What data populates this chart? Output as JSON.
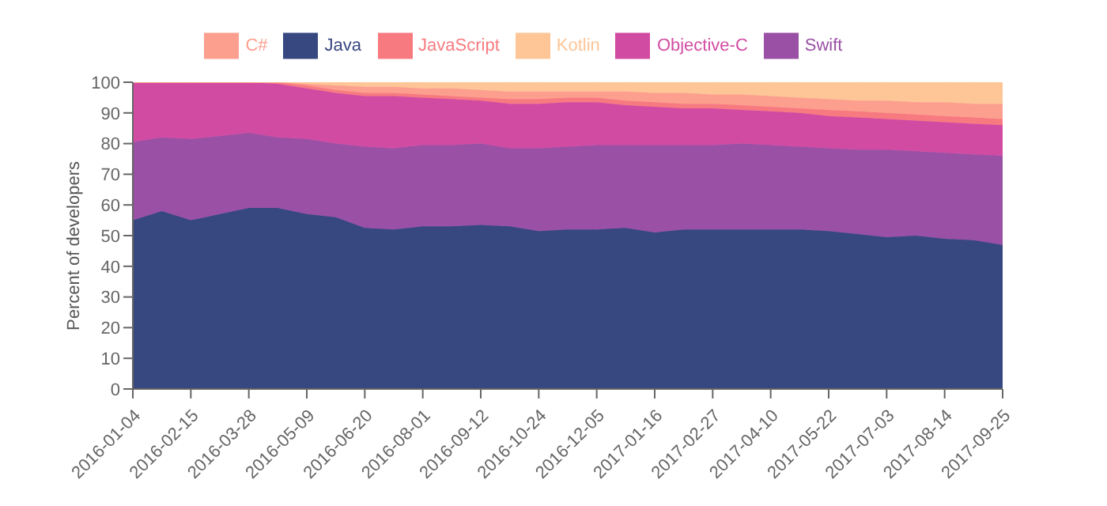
{
  "chart_data": {
    "type": "area",
    "stacked": true,
    "ylabel": "Percent of developers",
    "legend": "top",
    "marker": "none",
    "x": [
      "2016-01-04",
      "2016-01-25",
      "2016-02-15",
      "2016-03-07",
      "2016-03-28",
      "2016-04-18",
      "2016-05-09",
      "2016-05-30",
      "2016-06-20",
      "2016-07-11",
      "2016-08-01",
      "2016-08-22",
      "2016-09-12",
      "2016-10-03",
      "2016-10-24",
      "2016-11-14",
      "2016-12-05",
      "2016-12-26",
      "2017-01-16",
      "2017-02-06",
      "2017-02-27",
      "2017-03-20",
      "2017-04-10",
      "2017-05-01",
      "2017-05-22",
      "2017-06-12",
      "2017-07-03",
      "2017-07-24",
      "2017-08-14",
      "2017-09-04",
      "2017-09-25"
    ],
    "xlim": [
      "2016-01-04",
      "2017-09-25"
    ],
    "xticks": [
      "2016-01-04",
      "2016-02-15",
      "2016-03-28",
      "2016-05-09",
      "2016-06-20",
      "2016-08-01",
      "2016-09-12",
      "2016-10-24",
      "2016-12-05",
      "2017-01-16",
      "2017-02-27",
      "2017-04-10",
      "2017-05-22",
      "2017-07-03",
      "2017-08-14",
      "2017-09-25"
    ],
    "ylim": [
      0,
      100
    ],
    "yticks": [
      0,
      10,
      20,
      30,
      40,
      50,
      60,
      70,
      80,
      90,
      100
    ],
    "series": [
      {
        "name": "Java",
        "color": "#374780",
        "values": [
          55,
          58,
          55,
          57,
          59,
          59,
          57,
          56,
          52.5,
          52,
          53,
          53,
          53.5,
          53,
          51.5,
          52,
          52,
          52.5,
          51,
          52,
          52,
          52,
          52,
          52,
          51.5,
          50.5,
          49.5,
          50,
          49,
          48.5,
          47
        ]
      },
      {
        "name": "Swift",
        "color": "#9a50a5",
        "values": [
          25.5,
          24,
          26.5,
          25.5,
          24.5,
          23,
          24.5,
          24,
          26.5,
          26.5,
          26.5,
          26.5,
          26.5,
          25.5,
          27,
          27,
          27.5,
          27,
          28.5,
          27.5,
          27.5,
          28,
          27.5,
          27,
          27,
          27.5,
          28.5,
          27.5,
          28,
          28,
          29
        ]
      },
      {
        "name": "Objective-C",
        "color": "#d24ba2",
        "values": [
          19.5,
          18,
          18.5,
          17.5,
          16.5,
          17.5,
          16.5,
          16.5,
          16.5,
          17,
          15.5,
          15,
          14,
          14.5,
          14.5,
          14.5,
          14,
          13,
          12.5,
          12,
          12,
          11,
          11,
          11,
          10.5,
          10.5,
          10,
          10,
          10,
          10,
          10
        ]
      },
      {
        "name": "JavaScript",
        "color": "#f77a80",
        "values": [
          0,
          0,
          0,
          0,
          0,
          0.5,
          1,
          1,
          1,
          1,
          1,
          1,
          1,
          1.5,
          1.5,
          1.5,
          1.5,
          1.5,
          1.5,
          1.5,
          1.5,
          1.5,
          1.5,
          1.5,
          2,
          2,
          2,
          2,
          2,
          2,
          2
        ]
      },
      {
        "name": "C#",
        "color": "#fc9f8e",
        "values": [
          0,
          0,
          0,
          0,
          0,
          0,
          0.5,
          1.5,
          2,
          2,
          2,
          2.5,
          2.5,
          2.5,
          2.5,
          2,
          2,
          3,
          3,
          3.5,
          3,
          3.5,
          3.5,
          3.5,
          3.5,
          3.5,
          4,
          4,
          4.5,
          4.5,
          5
        ]
      },
      {
        "name": "Kotlin",
        "color": "#fec596",
        "values": [
          0,
          0,
          0,
          0,
          0,
          0,
          0.5,
          1,
          1.5,
          1.5,
          2,
          2,
          2.5,
          3,
          3,
          3,
          3,
          3,
          3.5,
          3.5,
          4,
          4,
          4.5,
          5,
          5.5,
          6,
          6,
          6.5,
          6.5,
          7,
          7
        ]
      }
    ]
  }
}
